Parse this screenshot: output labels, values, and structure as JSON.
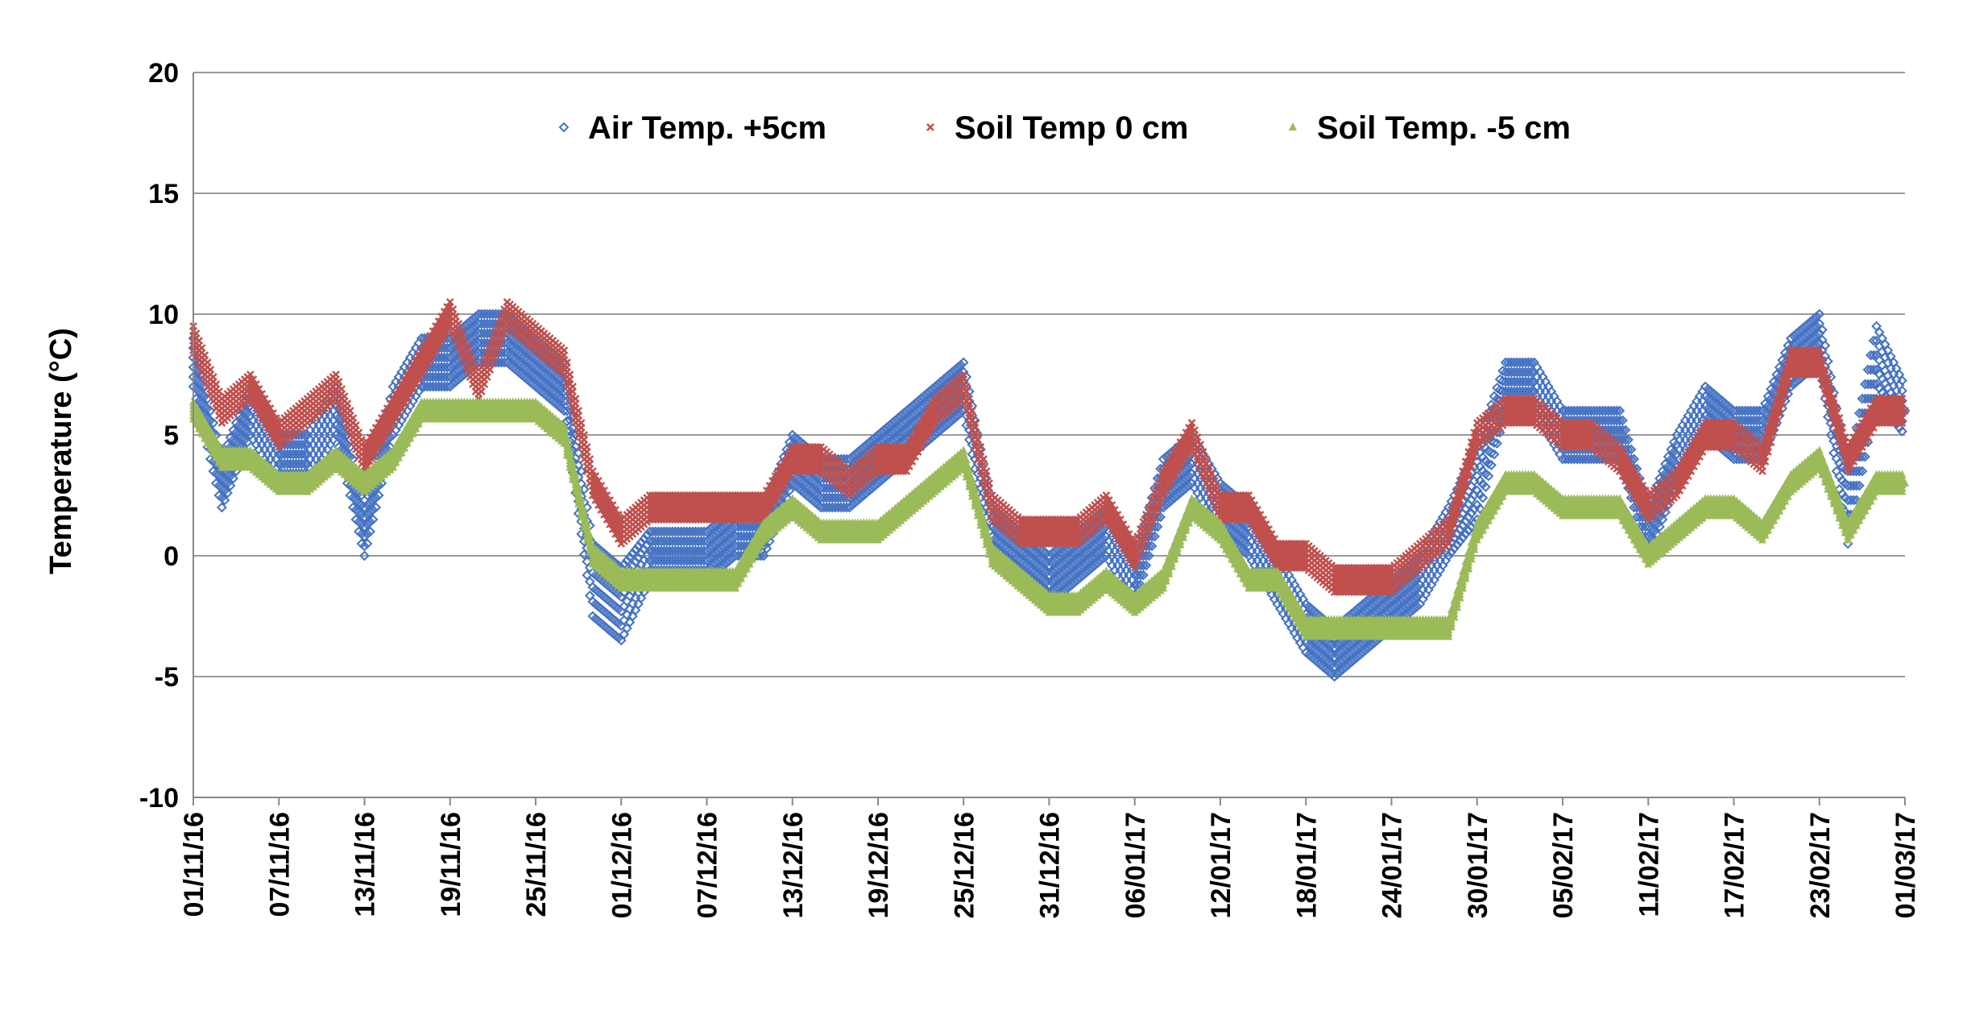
{
  "chart_data": {
    "type": "scatter",
    "title": "",
    "xlabel": "",
    "ylabel": "Temperature (°C)",
    "ylim": [
      -10,
      20
    ],
    "yticks": [
      -10,
      -5,
      0,
      5,
      10,
      15,
      20
    ],
    "x_range_days": [
      0,
      120
    ],
    "x_ticks": [
      {
        "day": 0,
        "label": "01/11/16"
      },
      {
        "day": 6,
        "label": "07/11/16"
      },
      {
        "day": 12,
        "label": "13/11/16"
      },
      {
        "day": 18,
        "label": "19/11/16"
      },
      {
        "day": 24,
        "label": "25/11/16"
      },
      {
        "day": 30,
        "label": "01/12/16"
      },
      {
        "day": 36,
        "label": "07/12/16"
      },
      {
        "day": 42,
        "label": "13/12/16"
      },
      {
        "day": 48,
        "label": "19/12/16"
      },
      {
        "day": 54,
        "label": "25/12/16"
      },
      {
        "day": 60,
        "label": "31/12/16"
      },
      {
        "day": 66,
        "label": "06/01/17"
      },
      {
        "day": 72,
        "label": "12/01/17"
      },
      {
        "day": 78,
        "label": "18/01/17"
      },
      {
        "day": 84,
        "label": "24/01/17"
      },
      {
        "day": 90,
        "label": "30/01/17"
      },
      {
        "day": 96,
        "label": "05/02/17"
      },
      {
        "day": 102,
        "label": "11/02/17"
      },
      {
        "day": 108,
        "label": "17/02/17"
      },
      {
        "day": 114,
        "label": "23/02/17"
      },
      {
        "day": 120,
        "label": "01/03/17"
      }
    ],
    "grid": true,
    "legend_position": "top",
    "series": [
      {
        "name": "Air Temp. +5cm",
        "marker": "diamond",
        "color": "#4472C4",
        "x": [
          0,
          2,
          4,
          6,
          8,
          10,
          12,
          14,
          16,
          18,
          20,
          22,
          24,
          26,
          28,
          30,
          32,
          34,
          36,
          38,
          40,
          42,
          44,
          46,
          48,
          50,
          52,
          54,
          56,
          58,
          60,
          62,
          64,
          66,
          68,
          70,
          72,
          74,
          76,
          78,
          80,
          82,
          84,
          86,
          88,
          90,
          92,
          94,
          96,
          98,
          100,
          102,
          104,
          106,
          108,
          110,
          112,
          114,
          116,
          118,
          120
        ],
        "y": [
          8,
          3,
          6,
          4,
          4,
          6,
          1,
          6,
          8,
          8,
          9,
          9,
          8,
          7,
          -1,
          -2,
          0,
          0,
          0,
          1,
          1,
          4,
          3,
          3,
          4,
          5,
          6,
          7,
          1,
          0,
          -1,
          0,
          1,
          -1,
          3,
          4,
          2,
          1,
          -1,
          -3,
          -4,
          -3,
          -2,
          -1,
          1,
          3,
          7,
          7,
          5,
          5,
          5,
          1,
          4,
          6,
          5,
          5,
          8,
          9,
          2,
          8,
          6
        ],
        "spread": [
          2,
          2,
          2,
          2,
          2,
          2,
          2,
          2,
          2,
          2,
          2,
          2,
          2,
          2,
          3,
          3,
          2,
          2,
          2,
          2,
          2,
          2,
          2,
          2,
          2,
          2,
          2,
          2,
          2,
          2,
          2,
          2,
          2,
          2,
          2,
          2,
          2,
          2,
          2,
          2,
          2,
          2,
          2,
          2,
          2,
          3,
          2,
          2,
          2,
          2,
          2,
          2,
          2,
          2,
          2,
          2,
          2,
          2,
          3,
          3,
          2
        ]
      },
      {
        "name": "Soil Temp 0 cm",
        "marker": "x",
        "color": "#C0504D",
        "x": [
          0,
          2,
          4,
          6,
          8,
          10,
          12,
          14,
          16,
          18,
          20,
          22,
          24,
          26,
          28,
          30,
          32,
          34,
          36,
          38,
          40,
          42,
          44,
          46,
          48,
          50,
          52,
          54,
          56,
          58,
          60,
          62,
          64,
          66,
          68,
          70,
          72,
          74,
          76,
          78,
          80,
          82,
          84,
          86,
          88,
          90,
          92,
          94,
          96,
          98,
          100,
          102,
          104,
          106,
          108,
          110,
          112,
          114,
          116,
          118,
          120
        ],
        "y": [
          9,
          6,
          7,
          5,
          6,
          7,
          4,
          6,
          8,
          10,
          7,
          10,
          9,
          8,
          3,
          1,
          2,
          2,
          2,
          2,
          2,
          4,
          4,
          3,
          4,
          4,
          6,
          7,
          2,
          1,
          1,
          1,
          2,
          0,
          3,
          5,
          2,
          2,
          0,
          0,
          -1,
          -1,
          -1,
          0,
          1,
          5,
          6,
          6,
          5,
          5,
          4,
          2,
          3,
          5,
          5,
          4,
          8,
          8,
          4,
          6,
          6
        ],
        "spread": [
          1,
          1,
          1,
          1,
          1,
          1,
          1,
          1,
          1,
          1,
          1,
          1,
          1,
          1,
          1,
          1,
          1,
          1,
          1,
          1,
          1,
          1,
          1,
          1,
          1,
          1,
          1,
          1,
          1,
          1,
          1,
          1,
          1,
          1,
          1,
          1,
          1,
          1,
          1,
          1,
          1,
          1,
          1,
          1,
          1,
          1,
          1,
          1,
          1,
          1,
          1,
          1,
          1,
          1,
          1,
          1,
          1,
          1,
          1,
          1,
          1
        ]
      },
      {
        "name": "Soil Temp. -5 cm",
        "marker": "triangle",
        "color": "#9BBB59",
        "x": [
          0,
          2,
          4,
          6,
          8,
          10,
          12,
          14,
          16,
          18,
          20,
          22,
          24,
          26,
          28,
          30,
          32,
          34,
          36,
          38,
          40,
          42,
          44,
          46,
          48,
          50,
          52,
          54,
          56,
          58,
          60,
          62,
          64,
          66,
          68,
          70,
          72,
          74,
          76,
          78,
          80,
          82,
          84,
          86,
          88,
          90,
          92,
          94,
          96,
          98,
          100,
          102,
          104,
          106,
          108,
          110,
          112,
          114,
          116,
          118,
          120
        ],
        "y": [
          6,
          4,
          4,
          3,
          3,
          4,
          3,
          4,
          6,
          6,
          6,
          6,
          6,
          5,
          0,
          -1,
          -1,
          -1,
          -1,
          -1,
          1,
          2,
          1,
          1,
          1,
          2,
          3,
          4,
          0,
          -1,
          -2,
          -2,
          -1,
          -2,
          -1,
          2,
          1,
          -1,
          -1,
          -3,
          -3,
          -3,
          -3,
          -3,
          -3,
          1,
          3,
          3,
          2,
          2,
          2,
          0,
          1,
          2,
          2,
          1,
          3,
          4,
          1,
          3,
          3
        ],
        "spread": [
          0.7,
          0.7,
          0.7,
          0.7,
          0.7,
          0.7,
          0.7,
          0.7,
          0.7,
          0.7,
          0.7,
          0.7,
          0.7,
          0.7,
          0.7,
          0.7,
          0.7,
          0.7,
          0.7,
          0.7,
          0.7,
          0.7,
          0.7,
          0.7,
          0.7,
          0.7,
          0.7,
          0.7,
          0.7,
          0.7,
          0.7,
          0.7,
          0.7,
          0.7,
          0.7,
          0.7,
          0.7,
          0.7,
          0.7,
          0.7,
          0.7,
          0.7,
          0.7,
          0.7,
          0.7,
          0.7,
          0.7,
          0.7,
          0.7,
          0.7,
          0.7,
          0.7,
          0.7,
          0.7,
          0.7,
          0.7,
          0.7,
          0.7,
          0.7,
          0.7,
          0.7
        ]
      }
    ]
  }
}
